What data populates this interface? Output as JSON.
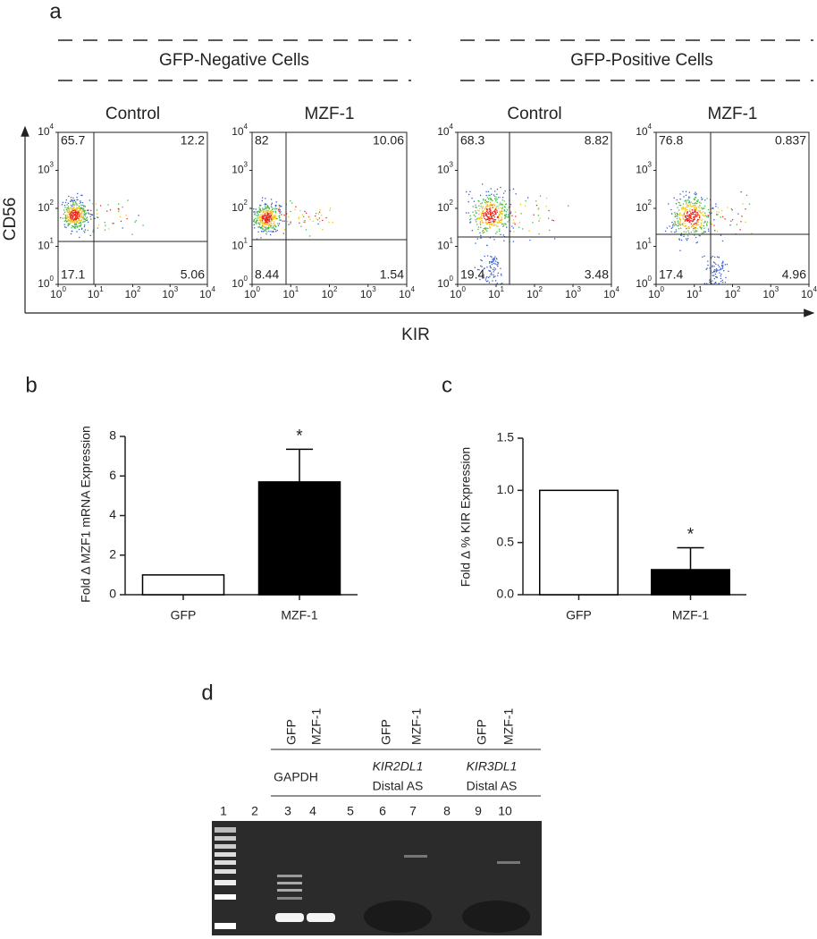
{
  "panel_labels": [
    "a",
    "b",
    "c",
    "d"
  ],
  "flow": {
    "groups": [
      "GFP-Negative Cells",
      "GFP-Positive Cells"
    ],
    "y_axis_label": "CD56",
    "x_axis_label": "KIR",
    "tick_base": "10",
    "tick_exponents": [
      0,
      1,
      2,
      3,
      4
    ],
    "plots": [
      {
        "title": "Control",
        "quadrants": [
          65.7,
          12.2,
          17.1,
          5.06
        ]
      },
      {
        "title": "MZF-1",
        "quadrants": [
          82,
          10.06,
          8.44,
          1.54
        ]
      },
      {
        "title": "Control",
        "quadrants": [
          68.3,
          8.82,
          19.4,
          3.48
        ]
      },
      {
        "title": "MZF-1",
        "quadrants": [
          76.8,
          0.837,
          17.4,
          4.96
        ]
      }
    ]
  },
  "chart_data": [
    {
      "type": "bar",
      "ylabel": "Fold Δ MZF1 mRNA Expression",
      "categories": [
        "GFP",
        "MZF-1"
      ],
      "values": [
        1,
        5.7
      ],
      "errors": [
        null,
        1.65
      ],
      "annotations": [
        null,
        "*"
      ],
      "colors": [
        "#ffffff",
        "#000000"
      ],
      "ylim": [
        0,
        8
      ],
      "yticks": [
        0,
        2,
        4,
        6,
        8
      ]
    },
    {
      "type": "bar",
      "ylabel": "Fold Δ % KIR Expression",
      "categories": [
        "GFP",
        "MZF-1"
      ],
      "values": [
        1,
        0.24
      ],
      "errors": [
        null,
        0.21
      ],
      "annotations": [
        null,
        "*"
      ],
      "colors": [
        "#ffffff",
        "#000000"
      ],
      "ylim": [
        0,
        1.5
      ],
      "yticks": [
        {
          "value": 0,
          "label": "0.0"
        },
        {
          "value": 0.5,
          "label": "0.5"
        },
        {
          "value": 1,
          "label": "1.0"
        },
        {
          "value": 1.5,
          "label": "1.5"
        }
      ]
    }
  ],
  "gel": {
    "groups": [
      {
        "lanes": [
          "GFP",
          "MZF-1"
        ],
        "label": [
          "GAPDH"
        ]
      },
      {
        "lanes": [
          "GFP",
          "MZF-1"
        ],
        "label": [
          "KIR2DL1",
          "Distal AS"
        ]
      },
      {
        "lanes": [
          "GFP",
          "MZF-1"
        ],
        "label": [
          "KIR3DL1",
          "Distal AS"
        ]
      }
    ],
    "lane_numbers": [
      1,
      2,
      3,
      4,
      5,
      6,
      7,
      8,
      9,
      10
    ]
  }
}
